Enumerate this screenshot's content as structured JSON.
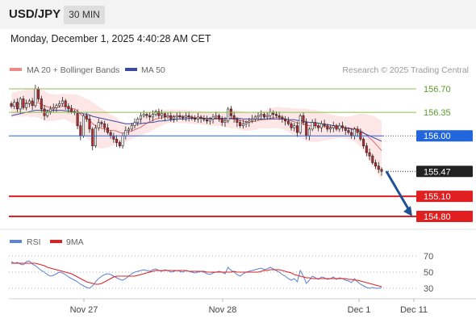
{
  "header": {
    "symbol": "USD/JPY",
    "timeframe": "30 MIN",
    "datetime": "Monday, December 1, 2025 4:40:28 AM CET"
  },
  "legend": {
    "ma20_label": "MA 20 + Bollinger Bands",
    "ma50_label": "MA 50",
    "credit": "Research © 2025 Trading Central",
    "rsi_label": "RSI",
    "rsi_ma_label": "9MA"
  },
  "colors": {
    "candle_up": "#ffffff",
    "candle_down": "#c0282d",
    "ma20": "#e06a6a",
    "bollinger_fill": "#fde3e3",
    "ma50": "#3d4aa0",
    "green_level": "#8dc050",
    "blue_level": "#2266dd",
    "red_level": "#e02020",
    "current_tag": "#222222",
    "forecast_arrow": "#1f5294",
    "rsi": "#5b83d6",
    "rsi_ma": "#e02020"
  },
  "chart_data": [
    {
      "type": "candlestick",
      "x_labels": [
        "Nov 27",
        "Nov 28",
        "Dec 1",
        "Dec 11"
      ],
      "ylim": [
        154.68,
        156.82
      ],
      "price_labels": [
        {
          "label": "156.70",
          "value": 156.7,
          "kind": "resistance",
          "color": "#8dc050"
        },
        {
          "label": "156.35",
          "value": 156.35,
          "kind": "resistance",
          "color": "#8dc050"
        },
        {
          "label": "156.00",
          "value": 156.0,
          "kind": "pivot",
          "color": "#2266dd"
        },
        {
          "label": "155.47",
          "value": 155.47,
          "kind": "current",
          "color": "#222222"
        },
        {
          "label": "155.10",
          "value": 155.1,
          "kind": "support",
          "color": "#e02020"
        },
        {
          "label": "154.80",
          "value": 154.8,
          "kind": "support",
          "color": "#e02020"
        }
      ],
      "closes": [
        156.44,
        156.5,
        156.4,
        156.55,
        156.42,
        156.48,
        156.52,
        156.45,
        156.7,
        156.55,
        156.4,
        156.3,
        156.36,
        156.4,
        156.42,
        156.45,
        156.48,
        156.52,
        156.44,
        156.4,
        156.36,
        156.35,
        156.15,
        156.0,
        156.3,
        156.25,
        156.1,
        155.85,
        156.12,
        156.2,
        156.18,
        156.12,
        156.05,
        156.0,
        155.95,
        155.9,
        155.85,
        156.0,
        156.08,
        156.1,
        156.15,
        156.2,
        156.25,
        156.3,
        156.32,
        156.3,
        156.28,
        156.32,
        156.36,
        156.3,
        156.33,
        156.28,
        156.3,
        156.25,
        156.28,
        156.3,
        156.28,
        156.27,
        156.3,
        156.28,
        156.26,
        156.25,
        156.28,
        156.26,
        156.24,
        156.22,
        156.25,
        156.28,
        156.3,
        156.25,
        156.2,
        156.22,
        156.4,
        156.3,
        156.25,
        156.2,
        156.15,
        156.18,
        156.2,
        156.22,
        156.25,
        156.28,
        156.3,
        156.32,
        156.28,
        156.3,
        156.35,
        156.32,
        156.3,
        156.28,
        156.25,
        156.22,
        156.18,
        156.12,
        156.15,
        156.05,
        156.3,
        156.2,
        156.0,
        156.1,
        156.2,
        156.15,
        156.12,
        156.18,
        156.15,
        156.1,
        156.12,
        156.15,
        156.1,
        156.15,
        156.12,
        156.08,
        156.05,
        156.0,
        156.1,
        156.05,
        155.95,
        155.85,
        155.75,
        155.7,
        155.6,
        155.55,
        155.5,
        155.47
      ],
      "ma20": [
        156.45,
        156.47,
        156.47,
        156.48,
        156.48,
        156.49,
        156.49,
        156.49,
        156.5,
        156.49,
        156.47,
        156.45,
        156.43,
        156.42,
        156.42,
        156.42,
        156.43,
        156.44,
        156.43,
        156.42,
        156.41,
        156.4,
        156.37,
        156.32,
        156.29,
        156.26,
        156.23,
        156.18,
        156.15,
        156.13,
        156.11,
        156.1,
        156.09,
        156.08,
        156.08,
        156.07,
        156.05,
        156.04,
        156.05,
        156.06,
        156.07,
        156.09,
        156.11,
        156.13,
        156.16,
        156.19,
        156.21,
        156.23,
        156.25,
        156.26,
        156.27,
        156.28,
        156.29,
        156.29,
        156.29,
        156.29,
        156.29,
        156.29,
        156.29,
        156.28,
        156.28,
        156.27,
        156.27,
        156.27,
        156.26,
        156.26,
        156.25,
        156.25,
        156.25,
        156.25,
        156.24,
        156.24,
        156.25,
        156.25,
        156.25,
        156.24,
        156.23,
        156.22,
        156.21,
        156.21,
        156.21,
        156.22,
        156.23,
        156.24,
        156.24,
        156.25,
        156.26,
        156.27,
        156.27,
        156.27,
        156.26,
        156.25,
        156.24,
        156.22,
        156.21,
        156.19,
        156.19,
        156.18,
        156.16,
        156.15,
        156.15,
        156.15,
        156.14,
        156.14,
        156.14,
        156.14,
        156.13,
        156.13,
        156.13,
        156.13,
        156.13,
        156.12,
        156.12,
        156.11,
        156.11,
        156.1,
        156.08,
        156.05,
        156.01,
        155.97,
        155.93,
        155.88,
        155.83,
        155.78
      ],
      "ma50": [
        156.3,
        156.31,
        156.32,
        156.33,
        156.34,
        156.35,
        156.36,
        156.37,
        156.38,
        156.38,
        156.38,
        156.38,
        156.38,
        156.38,
        156.38,
        156.38,
        156.38,
        156.38,
        156.37,
        156.37,
        156.36,
        156.36,
        156.35,
        156.34,
        156.33,
        156.32,
        156.31,
        156.29,
        156.28,
        156.27,
        156.26,
        156.25,
        156.24,
        156.23,
        156.22,
        156.21,
        156.2,
        156.19,
        156.18,
        156.18,
        156.18,
        156.18,
        156.18,
        156.18,
        156.19,
        156.19,
        156.2,
        156.2,
        156.21,
        156.22,
        156.22,
        156.23,
        156.23,
        156.24,
        156.24,
        156.25,
        156.25,
        156.25,
        156.25,
        156.26,
        156.26,
        156.26,
        156.26,
        156.26,
        156.26,
        156.26,
        156.26,
        156.26,
        156.26,
        156.26,
        156.26,
        156.26,
        156.26,
        156.26,
        156.26,
        156.26,
        156.26,
        156.25,
        156.25,
        156.25,
        156.25,
        156.25,
        156.25,
        156.25,
        156.25,
        156.25,
        156.25,
        156.25,
        156.25,
        156.25,
        156.25,
        156.25,
        156.24,
        156.24,
        156.24,
        156.23,
        156.23,
        156.22,
        156.21,
        156.2,
        156.2,
        156.19,
        156.19,
        156.18,
        156.17,
        156.17,
        156.16,
        156.15,
        156.15,
        156.14,
        156.13,
        156.12,
        156.11,
        156.1,
        156.09,
        156.08,
        156.06,
        156.04,
        156.02,
        156.0,
        155.98,
        155.96,
        155.94,
        155.92
      ],
      "bollinger_width": [
        0.18,
        0.18,
        0.19,
        0.19,
        0.2,
        0.2,
        0.21,
        0.21,
        0.22,
        0.22,
        0.22,
        0.22,
        0.21,
        0.2,
        0.2,
        0.19,
        0.19,
        0.19,
        0.19,
        0.2,
        0.21,
        0.22,
        0.24,
        0.27,
        0.28,
        0.29,
        0.3,
        0.32,
        0.32,
        0.31,
        0.3,
        0.28,
        0.26,
        0.24,
        0.22,
        0.2,
        0.18,
        0.16,
        0.14,
        0.13,
        0.12,
        0.12,
        0.12,
        0.13,
        0.14,
        0.15,
        0.15,
        0.15,
        0.14,
        0.13,
        0.12,
        0.11,
        0.1,
        0.1,
        0.1,
        0.1,
        0.1,
        0.1,
        0.1,
        0.1,
        0.1,
        0.1,
        0.1,
        0.1,
        0.1,
        0.1,
        0.1,
        0.1,
        0.1,
        0.1,
        0.1,
        0.11,
        0.13,
        0.14,
        0.14,
        0.14,
        0.14,
        0.14,
        0.14,
        0.13,
        0.13,
        0.13,
        0.13,
        0.13,
        0.13,
        0.14,
        0.15,
        0.15,
        0.16,
        0.16,
        0.16,
        0.17,
        0.18,
        0.19,
        0.2,
        0.21,
        0.22,
        0.23,
        0.24,
        0.24,
        0.24,
        0.24,
        0.23,
        0.22,
        0.21,
        0.2,
        0.19,
        0.18,
        0.17,
        0.16,
        0.16,
        0.16,
        0.17,
        0.18,
        0.2,
        0.22,
        0.25,
        0.28,
        0.31,
        0.34,
        0.37,
        0.4,
        0.42,
        0.44
      ]
    },
    {
      "type": "line",
      "title": "RSI",
      "ylim": [
        20,
        80
      ],
      "ticks": [
        70,
        50,
        30
      ],
      "series": [
        {
          "name": "RSI",
          "values": [
            63,
            61,
            62,
            60,
            59,
            63,
            64,
            60,
            58,
            55,
            52,
            50,
            47,
            45,
            46,
            48,
            50,
            49,
            47,
            44,
            42,
            40,
            38,
            35,
            33,
            31,
            30,
            33,
            38,
            42,
            45,
            47,
            48,
            47,
            45,
            43,
            41,
            40,
            42,
            45,
            48,
            50,
            51,
            52,
            53,
            52,
            51,
            53,
            54,
            52,
            51,
            53,
            52,
            50,
            51,
            52,
            51,
            50,
            52,
            51,
            50,
            49,
            50,
            51,
            50,
            48,
            47,
            49,
            50,
            51,
            50,
            48,
            56,
            52,
            50,
            47,
            45,
            48,
            50,
            51,
            52,
            53,
            54,
            55,
            53,
            54,
            56,
            54,
            52,
            50,
            47,
            45,
            42,
            40,
            42,
            38,
            52,
            45,
            36,
            40,
            45,
            43,
            41,
            44,
            43,
            41,
            42,
            44,
            41,
            43,
            42,
            40,
            39,
            37,
            42,
            38,
            35,
            33,
            31,
            30,
            31,
            30,
            30,
            31
          ]
        },
        {
          "name": "9MA",
          "values": [
            61,
            61,
            61,
            61,
            61,
            61,
            61,
            61,
            61,
            60,
            59,
            58,
            56,
            55,
            54,
            53,
            52,
            51,
            50,
            49,
            48,
            46,
            44,
            42,
            40,
            38,
            37,
            36,
            35,
            35,
            36,
            38,
            40,
            42,
            44,
            45,
            45,
            45,
            45,
            45,
            45,
            45,
            46,
            47,
            48,
            49,
            50,
            51,
            52,
            52,
            52,
            52,
            52,
            52,
            52,
            52,
            52,
            52,
            52,
            51,
            51,
            51,
            51,
            51,
            51,
            50,
            50,
            50,
            50,
            50,
            50,
            50,
            50,
            50,
            51,
            50,
            50,
            50,
            50,
            50,
            50,
            50,
            50,
            51,
            52,
            52,
            53,
            53,
            53,
            53,
            52,
            51,
            50,
            49,
            47,
            46,
            45,
            44,
            43,
            43,
            42,
            42,
            42,
            42,
            42,
            42,
            42,
            42,
            42,
            42,
            42,
            42,
            41,
            41,
            40,
            40,
            39,
            38,
            37,
            36,
            35,
            34,
            33,
            32
          ]
        }
      ]
    }
  ]
}
